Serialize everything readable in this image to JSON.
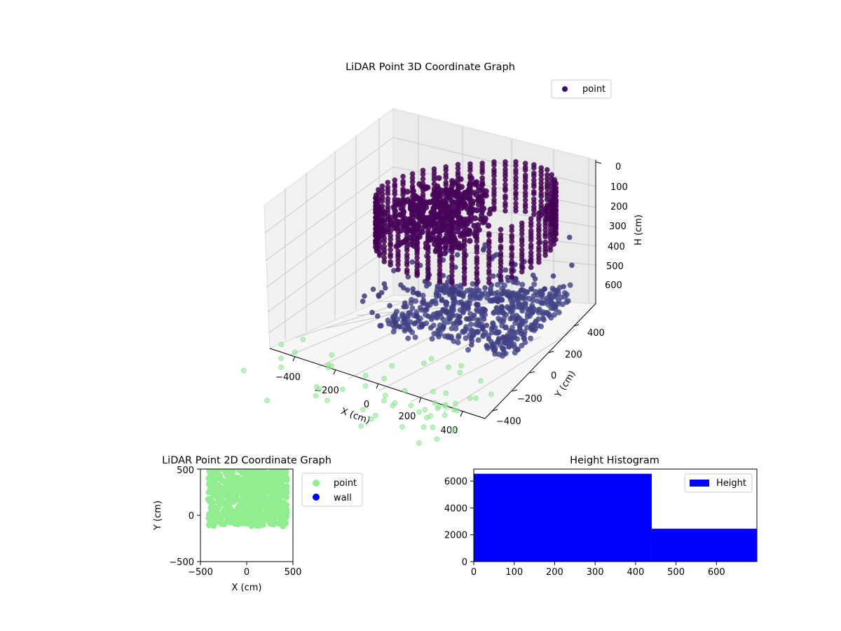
{
  "chart_data": [
    {
      "type": "scatter3d",
      "title": "LiDAR Point 3D Coordinate Graph",
      "xlabel": "X (cm)",
      "ylabel": "Y (cm)",
      "zlabel": "H (cm)",
      "xticks": [
        "−400",
        "−200",
        "0",
        "200",
        "400"
      ],
      "yticks": [
        "400",
        "200",
        "0",
        "−200",
        "−400"
      ],
      "zticks": [
        "0",
        "100",
        "200",
        "300",
        "400",
        "500",
        "600"
      ],
      "xlim": [
        -500,
        500
      ],
      "ylim": [
        -500,
        500
      ],
      "zlim": [
        0,
        690
      ],
      "z_inverted": true,
      "grid": true,
      "legend": {
        "position": "top-right",
        "entries": [
          {
            "label": "point",
            "color": "#3b0f70"
          }
        ]
      },
      "colors": {
        "upper": "#440154",
        "lower": "#414487",
        "floor": "#90ee90"
      }
    },
    {
      "type": "scatter",
      "title": "LiDAR Point 2D Coordinate Graph",
      "xlabel": "X (cm)",
      "ylabel": "Y (cm)",
      "xlim": [
        -500,
        500
      ],
      "ylim": [
        -500,
        500
      ],
      "xticks": [
        "−500",
        "0",
        "500"
      ],
      "yticks": [
        "500",
        "0",
        "−500"
      ],
      "legend": {
        "position": "outside-right",
        "entries": [
          {
            "label": "point",
            "color": "#90ee90"
          },
          {
            "label": "wall",
            "color": "#0000ff"
          }
        ]
      }
    },
    {
      "type": "bar",
      "title": "Height Histogram",
      "xlim": [
        0,
        700
      ],
      "ylim": [
        0,
        6900
      ],
      "xticks": [
        "0",
        "100",
        "200",
        "300",
        "400",
        "500",
        "600"
      ],
      "yticks": [
        "6000",
        "4000",
        "2000",
        "0"
      ],
      "bins": [
        {
          "start": 0,
          "end": 440,
          "value": 6550
        },
        {
          "start": 440,
          "end": 700,
          "value": 2450
        }
      ],
      "color": "#0000ff",
      "legend": {
        "position": "top-right",
        "entries": [
          {
            "label": "Height",
            "color": "#0000ff"
          }
        ]
      }
    }
  ]
}
